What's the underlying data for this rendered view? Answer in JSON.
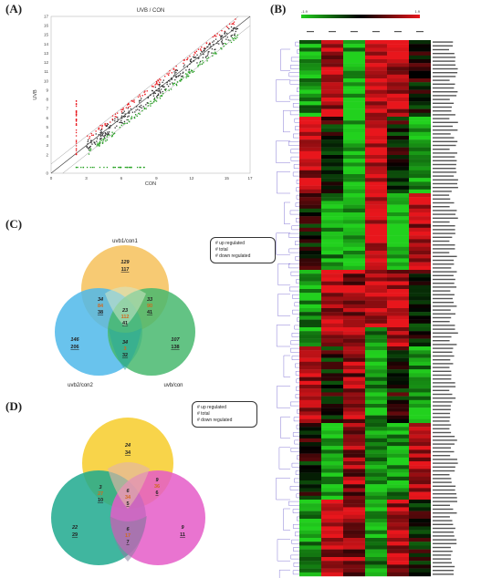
{
  "panels": {
    "A": {
      "label": "(A)",
      "scatter": {
        "title": "UVB / CON",
        "xlabel": "CON",
        "ylabel": "UVB",
        "xticks": [
          "0",
          "3",
          "6",
          "9",
          "12",
          "15",
          "17"
        ],
        "yticks": [
          "0",
          "2",
          "3",
          "4",
          "5",
          "6",
          "7",
          "8",
          "9",
          "10",
          "11",
          "12",
          "13",
          "14",
          "15",
          "16",
          "17"
        ]
      }
    },
    "B": {
      "label": "(B)",
      "heatmap": {
        "scale_min": "-1.9",
        "scale_max": "1.9",
        "columns": [
          "c0",
          "c1",
          "c2",
          "c3",
          "c4",
          "c5"
        ]
      }
    },
    "C": {
      "label": "(C)",
      "legend": {
        "up": "# up regulated",
        "total": "# total",
        "down": "# down regulated"
      },
      "sets": [
        "uvb1/con1",
        "uvb2/con2",
        "uvb/con"
      ],
      "regions": {
        "top_only": {
          "up": "129",
          "down": "117"
        },
        "left_only": {
          "up": "146",
          "down": "206"
        },
        "right_only": {
          "up": "107",
          "down": "138"
        },
        "top_left": {
          "up": "34",
          "total": "84",
          "down": "38"
        },
        "top_right": {
          "up": "33",
          "total": "90",
          "down": "41"
        },
        "center": {
          "up": "23",
          "total": "112",
          "down": "41"
        },
        "left_right": {
          "up": "34",
          "total": "3",
          "down": "32"
        }
      }
    },
    "D": {
      "label": "(D)",
      "legend": {
        "up": "# up regulated",
        "total": "# total",
        "down": "# down regulated"
      },
      "regions": {
        "top_only": {
          "up": "24",
          "down": "34"
        },
        "left_only": {
          "up": "22",
          "down": "29"
        },
        "right_only": {
          "up": "9",
          "down": "11"
        },
        "top_left": {
          "up": "3",
          "total": "27",
          "down": "10"
        },
        "top_right": {
          "up": "9",
          "total": "36",
          "down": "6"
        },
        "center": {
          "up": "6",
          "total": "34",
          "down": "5"
        },
        "left_right": {
          "up": "6",
          "total": "17",
          "down": "7"
        }
      }
    }
  },
  "colors": {
    "venn_top": "#f6c15a",
    "venn_left": "#4fb8ea",
    "venn_right": "#48b86f",
    "d_top": "#f7cc2a",
    "d_left": "#1fa98e",
    "d_right": "#e55cc8",
    "heat_red": "#e8161c",
    "heat_green": "#22d11e"
  }
}
